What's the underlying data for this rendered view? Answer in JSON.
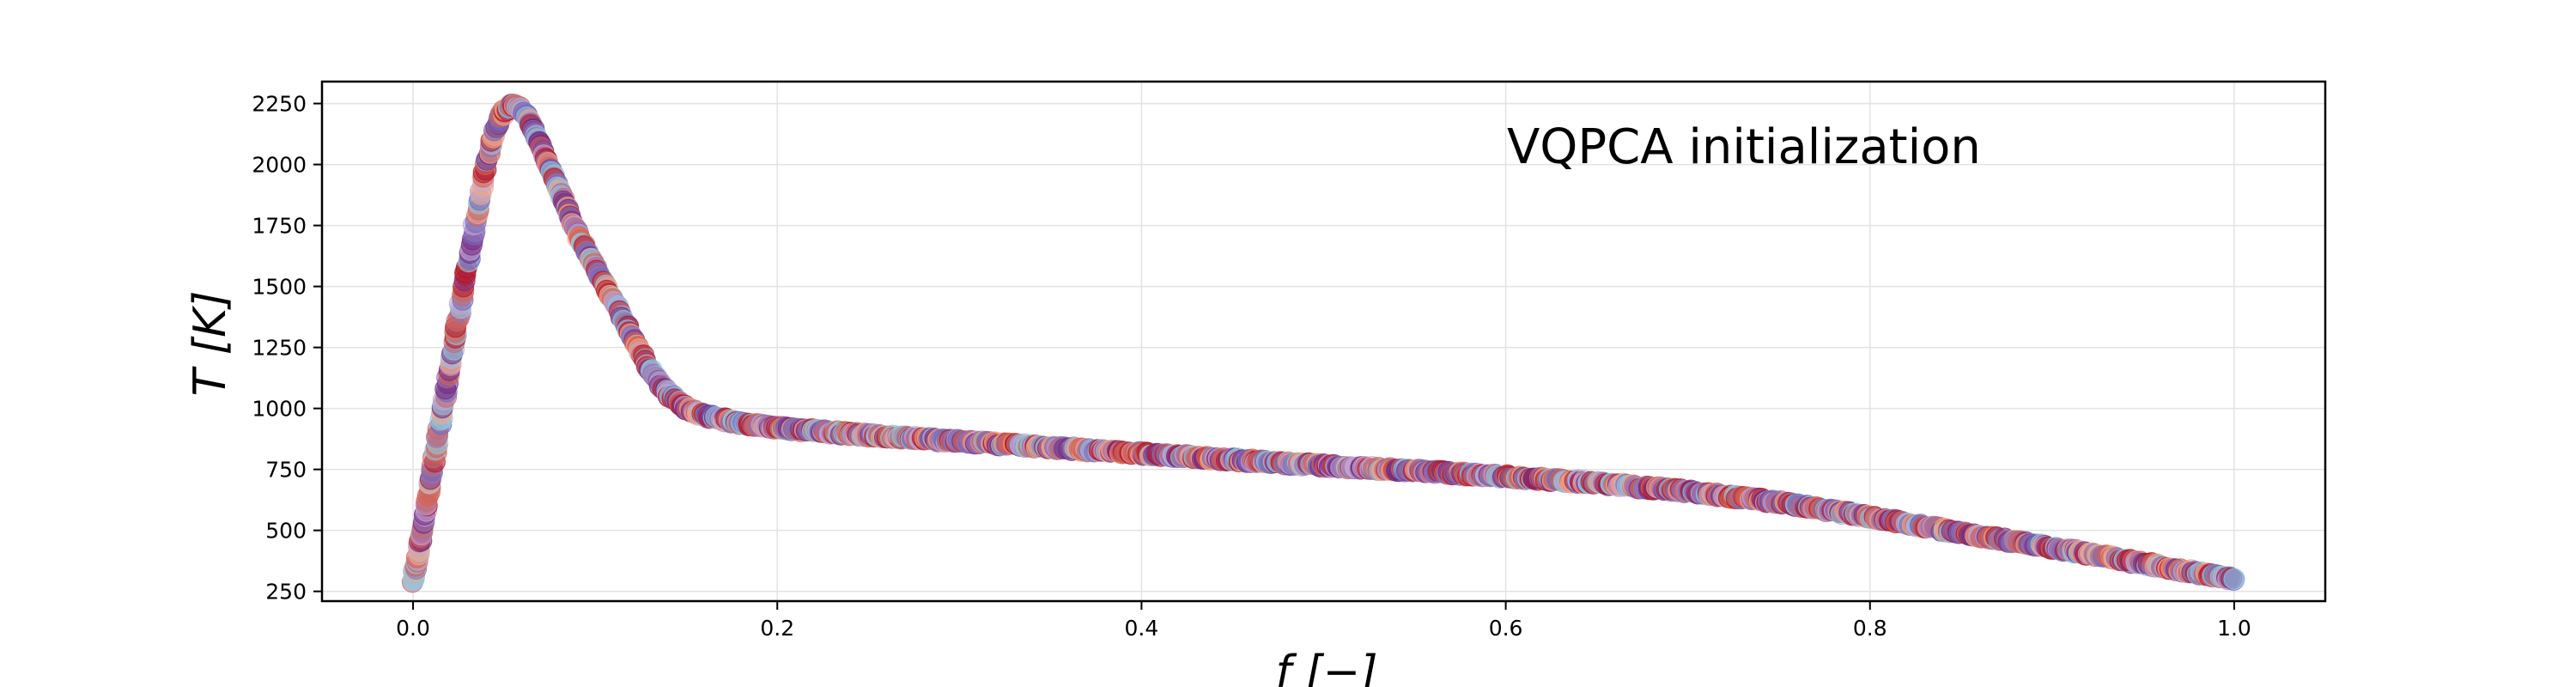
{
  "chart_data": {
    "type": "scatter",
    "annotation": "VQPCA initialization",
    "xlabel": "f [−]",
    "ylabel": "T [K]",
    "xlim": [
      -0.05,
      1.05
    ],
    "ylim": [
      210,
      2340
    ],
    "xticks": [
      0.0,
      0.2,
      0.4,
      0.6,
      0.8,
      1.0
    ],
    "xtick_labels": [
      "0.0",
      "0.2",
      "0.4",
      "0.6",
      "0.8",
      "1.0"
    ],
    "yticks": [
      250,
      500,
      750,
      1000,
      1250,
      1500,
      1750,
      2000,
      2250
    ],
    "ytick_labels": [
      "250",
      "500",
      "750",
      "1000",
      "1250",
      "1500",
      "1750",
      "2000",
      "2250"
    ],
    "grid": true,
    "colors": [
      "#b2182b",
      "#d6604d",
      "#f4a582",
      "#c2a5cf",
      "#9970ab",
      "#762a83",
      "#92c5de",
      "#6b6bc4",
      "#c4676e"
    ],
    "curve": {
      "x": [
        0.0,
        0.005,
        0.01,
        0.015,
        0.02,
        0.025,
        0.03,
        0.035,
        0.04,
        0.045,
        0.05,
        0.055,
        0.058,
        0.062,
        0.07,
        0.08,
        0.09,
        0.1,
        0.11,
        0.12,
        0.13,
        0.14,
        0.15,
        0.16,
        0.18,
        0.2,
        0.25,
        0.3,
        0.35,
        0.4,
        0.45,
        0.5,
        0.55,
        0.6,
        0.65,
        0.7,
        0.75,
        0.8,
        0.85,
        0.9,
        0.95,
        1.0
      ],
      "y": [
        295,
        500,
        720,
        940,
        1160,
        1380,
        1590,
        1800,
        1990,
        2140,
        2220,
        2245,
        2240,
        2200,
        2080,
        1900,
        1720,
        1580,
        1440,
        1300,
        1160,
        1060,
        1000,
        970,
        940,
        920,
        890,
        865,
        840,
        815,
        790,
        765,
        745,
        720,
        695,
        660,
        615,
        555,
        490,
        430,
        365,
        300
      ]
    }
  }
}
